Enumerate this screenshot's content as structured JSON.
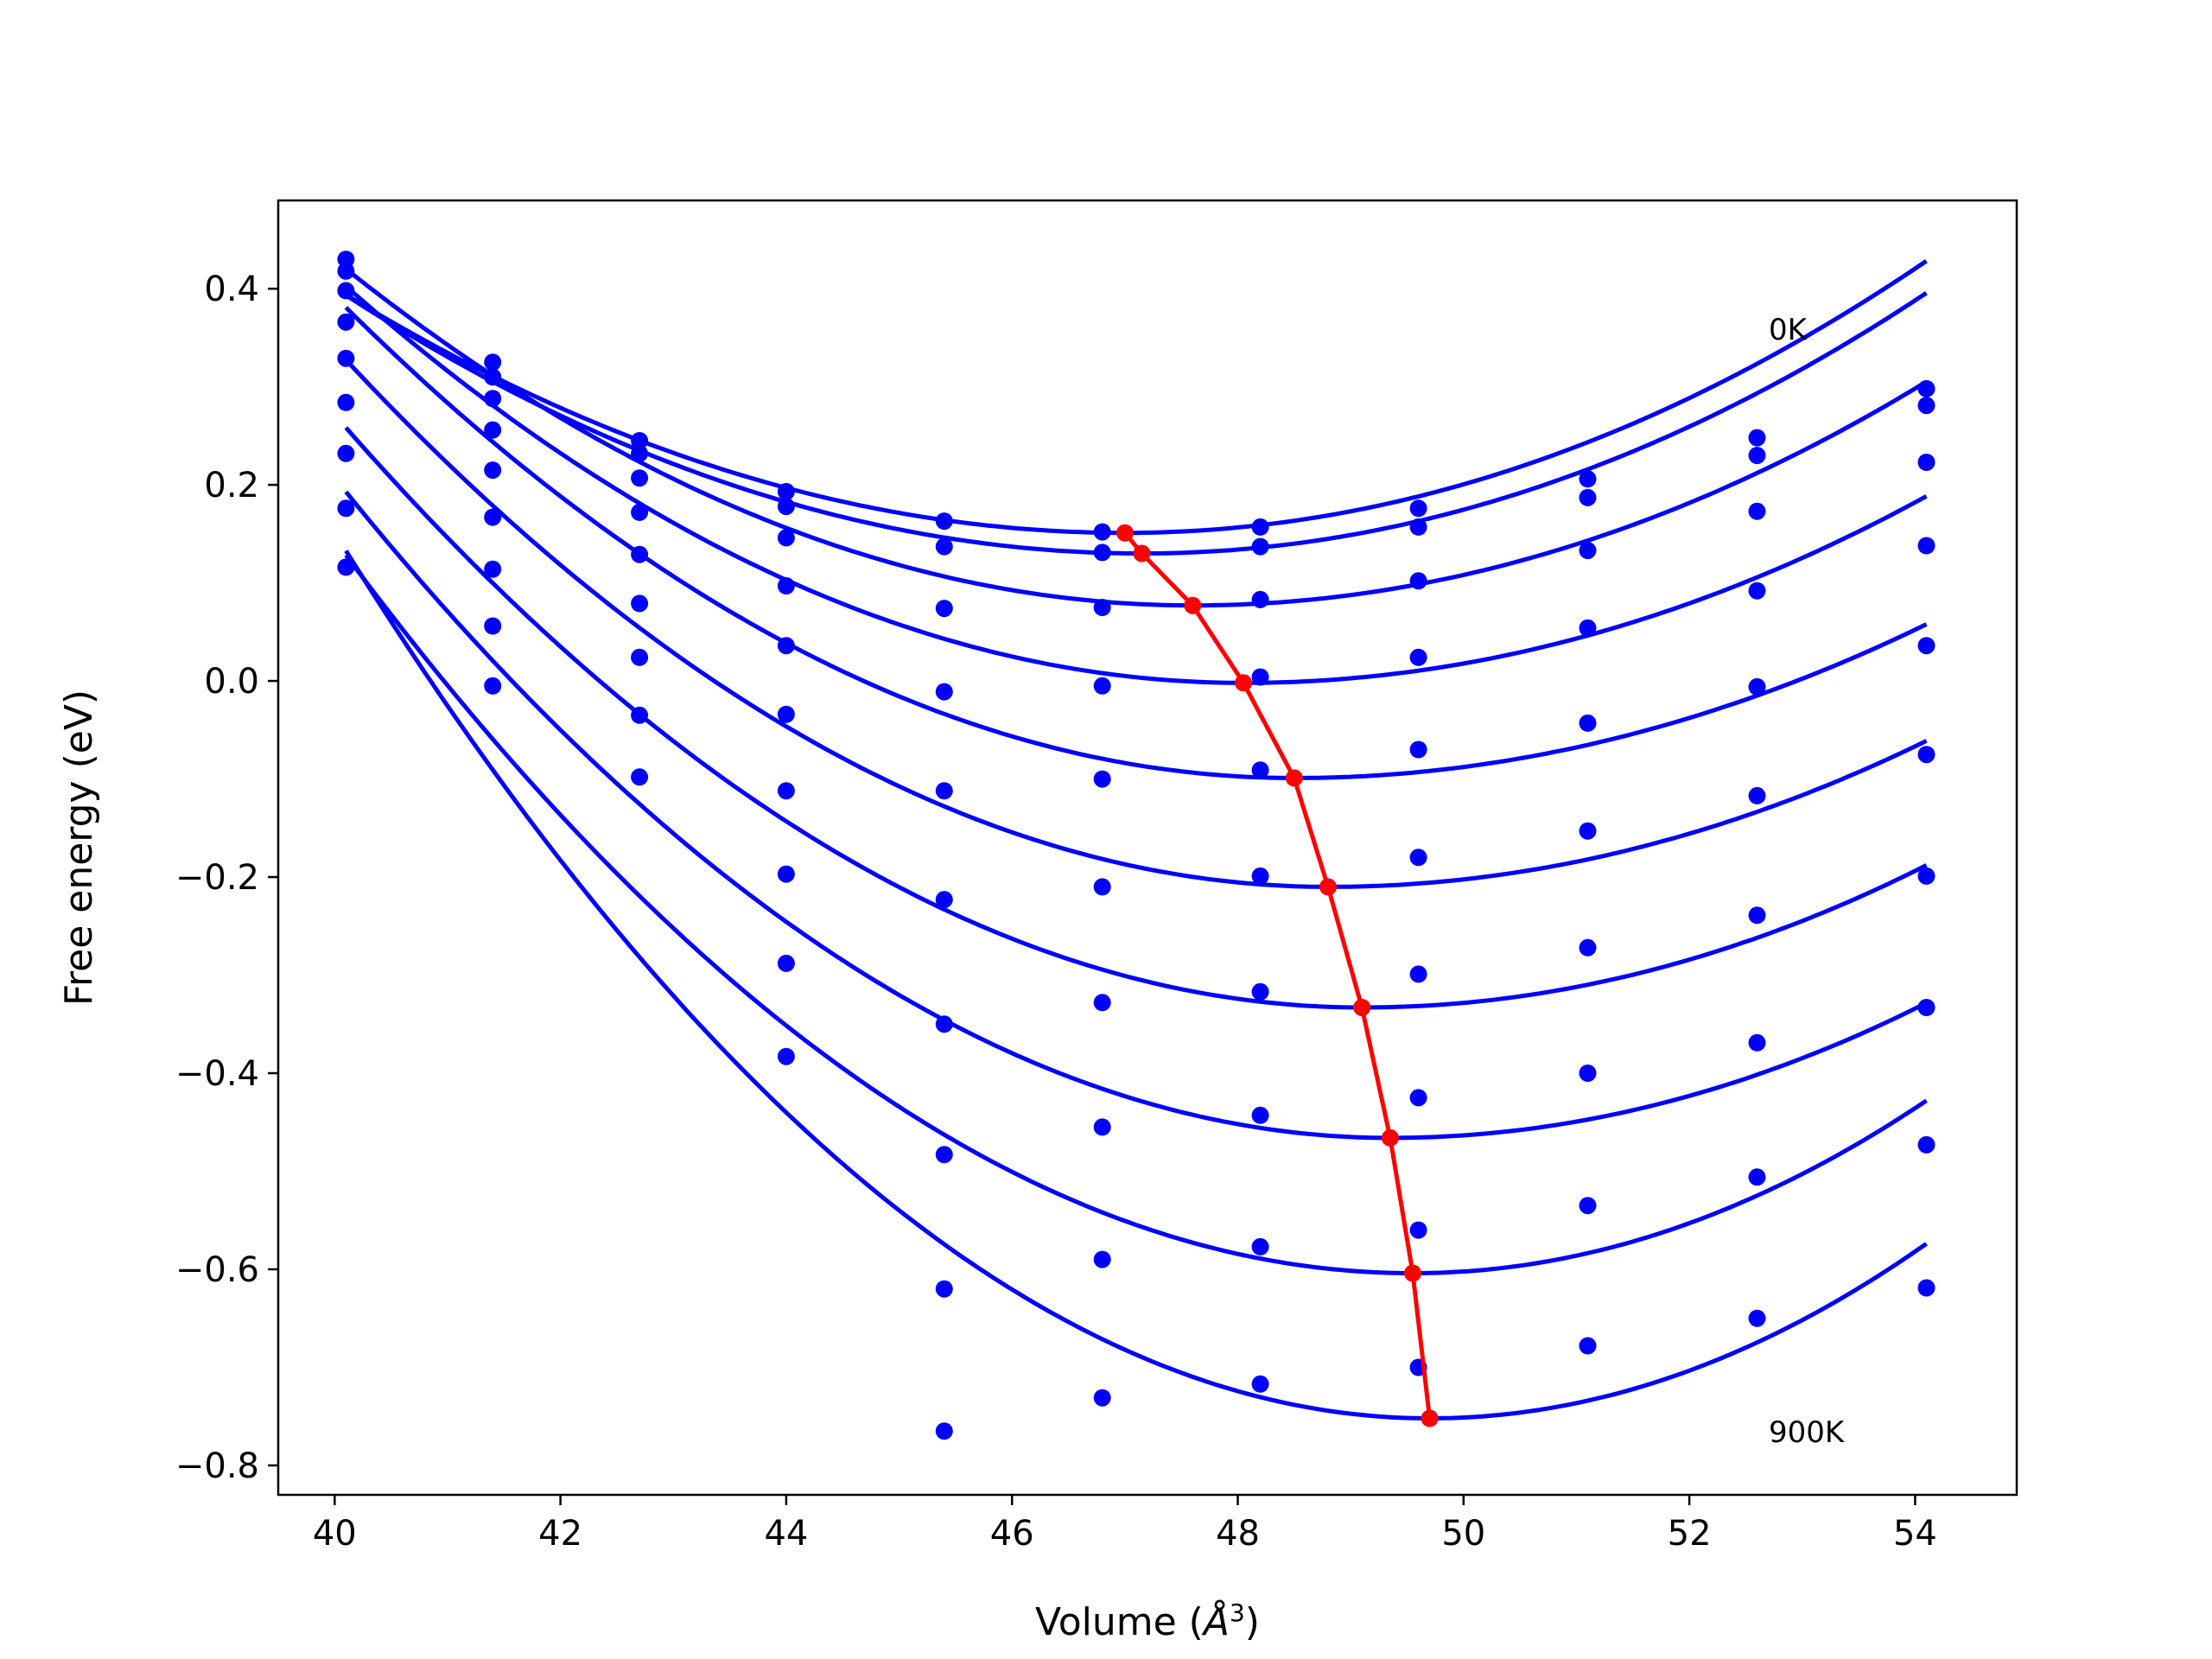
{
  "chart_data": {
    "type": "scatter",
    "xlabel": "Volume (",
    "xlabel_unit": "Å",
    "xlabel_exp": "3",
    "xlabel_close": ")",
    "ylabel": "Free energy (eV)",
    "xlim": [
      39.5,
      54.9
    ],
    "ylim": [
      -0.83,
      0.49
    ],
    "x_ticks": [
      40,
      42,
      44,
      46,
      48,
      50,
      52,
      54
    ],
    "x_tick_labels": [
      "40",
      "42",
      "44",
      "46",
      "48",
      "50",
      "52",
      "54"
    ],
    "y_ticks": [
      0.4,
      0.2,
      0.0,
      -0.2,
      -0.4,
      -0.6,
      -0.8
    ],
    "y_tick_labels": [
      "0.4",
      "0.2",
      "0.0",
      "−0.2",
      "−0.4",
      "−0.6",
      "−0.8"
    ],
    "grid": false,
    "annotations": [
      {
        "text": "0K",
        "x": 52.6,
        "y": 0.355
      },
      {
        "text": "900K",
        "x": 52.6,
        "y": -0.77
      }
    ],
    "colors": {
      "data": "#0000ff",
      "minimum_path": "#ff0000"
    },
    "volumes": [
      40.1,
      41.4,
      42.7,
      44.0,
      45.4,
      46.8,
      48.2,
      49.6,
      51.1,
      52.6,
      54.1
    ],
    "series": [
      {
        "points": [
          0.43,
          0.325,
          0.245,
          0.193,
          0.163,
          0.152,
          0.157,
          0.176,
          0.206,
          0.248,
          0.298
        ],
        "fit": {
          "vmin": 47.0,
          "fmin": 0.151,
          "a_left": 0.0051,
          "a_right": 0.0055
        }
      },
      {
        "points": [
          0.418,
          0.31,
          0.232,
          0.178,
          0.137,
          0.131,
          0.137,
          0.157,
          0.187,
          0.23,
          0.281
        ],
        "fit": {
          "vmin": 47.15,
          "fmin": 0.13,
          "a_left": 0.0053,
          "a_right": 0.0055
        }
      },
      {
        "points": [
          0.398,
          0.288,
          0.207,
          0.146,
          0.074,
          0.075,
          0.083,
          0.102,
          0.133,
          0.173,
          0.223
        ],
        "fit": {
          "vmin": 47.6,
          "fmin": 0.077,
          "a_left": 0.0061,
          "a_right": 0.0054
        }
      },
      {
        "points": [
          0.366,
          0.256,
          0.172,
          0.097,
          -0.011,
          -0.005,
          0.004,
          0.024,
          0.054,
          0.092,
          0.138
        ],
        "fit": {
          "vmin": 48.05,
          "fmin": -0.002,
          "a_left": 0.0064,
          "a_right": 0.0052
        }
      },
      {
        "points": [
          0.329,
          0.215,
          0.129,
          0.036,
          -0.112,
          -0.1,
          -0.091,
          -0.07,
          -0.043,
          -0.006,
          0.036
        ],
        "fit": {
          "vmin": 48.5,
          "fmin": -0.099,
          "a_left": 0.0068,
          "a_right": 0.005
        }
      },
      {
        "points": [
          0.284,
          0.167,
          0.079,
          -0.034,
          -0.223,
          -0.21,
          -0.199,
          -0.18,
          -0.153,
          -0.117,
          -0.075
        ],
        "fit": {
          "vmin": 48.8,
          "fmin": -0.21,
          "a_left": 0.0071,
          "a_right": 0.0053
        }
      },
      {
        "points": [
          0.232,
          0.114,
          0.024,
          -0.112,
          -0.35,
          -0.328,
          -0.317,
          -0.299,
          -0.272,
          -0.239,
          -0.199
        ],
        "fit": {
          "vmin": 49.1,
          "fmin": -0.333,
          "a_left": 0.0073,
          "a_right": 0.0058
        }
      },
      {
        "points": [
          0.176,
          0.056,
          -0.035,
          -0.197,
          -0.483,
          -0.455,
          -0.443,
          -0.425,
          -0.4,
          -0.369,
          -0.333
        ],
        "fit": {
          "vmin": 49.35,
          "fmin": -0.466,
          "a_left": 0.0077,
          "a_right": 0.0061
        }
      },
      {
        "points": [
          0.116,
          -0.005,
          -0.098,
          -0.288,
          -0.62,
          -0.59,
          -0.577,
          -0.56,
          -0.535,
          -0.506,
          -0.473
        ],
        "fit": {
          "vmin": 49.55,
          "fmin": -0.604,
          "a_left": 0.0082,
          "a_right": 0.0085
        }
      },
      {
        "points": [
          null,
          null,
          null,
          -0.383,
          -0.765,
          -0.731,
          -0.717,
          -0.7,
          -0.678,
          -0.65,
          -0.619
        ],
        "fit": {
          "vmin": 49.7,
          "fmin": -0.752,
          "a_left": 0.0096,
          "a_right": 0.0092
        }
      }
    ],
    "minimum_path": {
      "x": [
        47.0,
        47.15,
        47.6,
        48.05,
        48.5,
        48.8,
        49.1,
        49.35,
        49.55,
        49.7
      ],
      "y": [
        0.151,
        0.13,
        0.077,
        -0.002,
        -0.099,
        -0.21,
        -0.333,
        -0.466,
        -0.604,
        -0.752
      ]
    }
  }
}
